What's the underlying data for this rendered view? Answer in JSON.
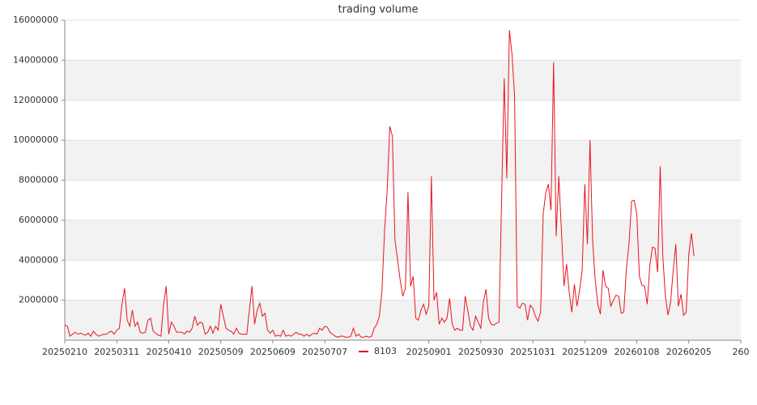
{
  "chart_data": {
    "type": "line",
    "title": "trading volume",
    "xlim": [
      0,
      260
    ],
    "xticks": [
      {
        "value": 0,
        "label": "20250210"
      },
      {
        "value": 20,
        "label": "20250311"
      },
      {
        "value": 40,
        "label": "20250410"
      },
      {
        "value": 60,
        "label": "20250509"
      },
      {
        "value": 80,
        "label": "20250609"
      },
      {
        "value": 100,
        "label": "20250707"
      },
      {
        "value": 140,
        "label": "20250901"
      },
      {
        "value": 160,
        "label": "20250930"
      },
      {
        "value": 180,
        "label": "20251031"
      },
      {
        "value": 200,
        "label": "20251209"
      },
      {
        "value": 220,
        "label": "20260108"
      },
      {
        "value": 240,
        "label": "20260205"
      },
      {
        "value": 260,
        "label": "260"
      }
    ],
    "ylim": [
      0,
      16000000
    ],
    "yticks": [
      2000000,
      4000000,
      6000000,
      8000000,
      10000000,
      12000000,
      14000000,
      16000000
    ],
    "grid": true,
    "legend": "bottom",
    "series": [
      {
        "name": "8103",
        "color": "#e8141e",
        "values": [
          750000,
          700000,
          200000,
          300000,
          400000,
          300000,
          350000,
          300000,
          250000,
          350000,
          200000,
          450000,
          300000,
          200000,
          250000,
          300000,
          300000,
          400000,
          450000,
          300000,
          500000,
          600000,
          1800000,
          2600000,
          1000000,
          700000,
          1500000,
          700000,
          900000,
          400000,
          350000,
          400000,
          1000000,
          1100000,
          450000,
          350000,
          250000,
          200000,
          1800000,
          2700000,
          300000,
          900000,
          700000,
          400000,
          400000,
          400000,
          300000,
          450000,
          400000,
          600000,
          1200000,
          750000,
          900000,
          850000,
          300000,
          400000,
          700000,
          350000,
          700000,
          500000,
          1800000,
          1200000,
          600000,
          500000,
          450000,
          300000,
          600000,
          350000,
          300000,
          300000,
          300000,
          1500000,
          2700000,
          800000,
          1500000,
          1850000,
          1200000,
          1350000,
          500000,
          350000,
          500000,
          200000,
          250000,
          200000,
          500000,
          200000,
          250000,
          200000,
          300000,
          400000,
          300000,
          300000,
          200000,
          300000,
          200000,
          300000,
          350000,
          300000,
          600000,
          500000,
          700000,
          650000,
          400000,
          300000,
          200000,
          150000,
          200000,
          200000,
          150000,
          150000,
          200000,
          600000,
          200000,
          300000,
          150000,
          150000,
          200000,
          150000,
          200000,
          600000,
          800000,
          1200000,
          2500000,
          5500000,
          7500000,
          10700000,
          10200000,
          5000000,
          4000000,
          3000000,
          2200000,
          2600000,
          7400000,
          2700000,
          3200000,
          1100000,
          1000000,
          1500000,
          1800000,
          1300000,
          1700000,
          8200000,
          2000000,
          2400000,
          800000,
          1100000,
          900000,
          1100000,
          2100000,
          800000,
          500000,
          600000,
          500000,
          500000,
          2200000,
          1500000,
          700000,
          500000,
          1200000,
          900000,
          600000,
          1900000,
          2550000,
          1100000,
          800000,
          750000,
          850000,
          900000,
          7000000,
          13100000,
          8100000,
          15500000,
          14300000,
          12200000,
          1700000,
          1600000,
          1850000,
          1800000,
          1000000,
          1750000,
          1600000,
          1200000,
          950000,
          1400000,
          6300000,
          7400000,
          7800000,
          6500000,
          13900000,
          5200000,
          8200000,
          5500000,
          2700000,
          3800000,
          2400000,
          1400000,
          2800000,
          1700000,
          2500000,
          3500000,
          7800000,
          4800000,
          10000000,
          5000000,
          3000000,
          1800000,
          1300000,
          3500000,
          2700000,
          2600000,
          1700000,
          2000000,
          2250000,
          2200000,
          1350000,
          1400000,
          3600000,
          4800000,
          6950000,
          7000000,
          6300000,
          3200000,
          2750000,
          2700000,
          1800000,
          3700000,
          4650000,
          4600000,
          3400000,
          8700000,
          4200000,
          2200000,
          1250000,
          1900000,
          3500000,
          4800000,
          1700000,
          2300000,
          1250000,
          1400000,
          4300000,
          5350000,
          4200000
        ]
      }
    ]
  }
}
